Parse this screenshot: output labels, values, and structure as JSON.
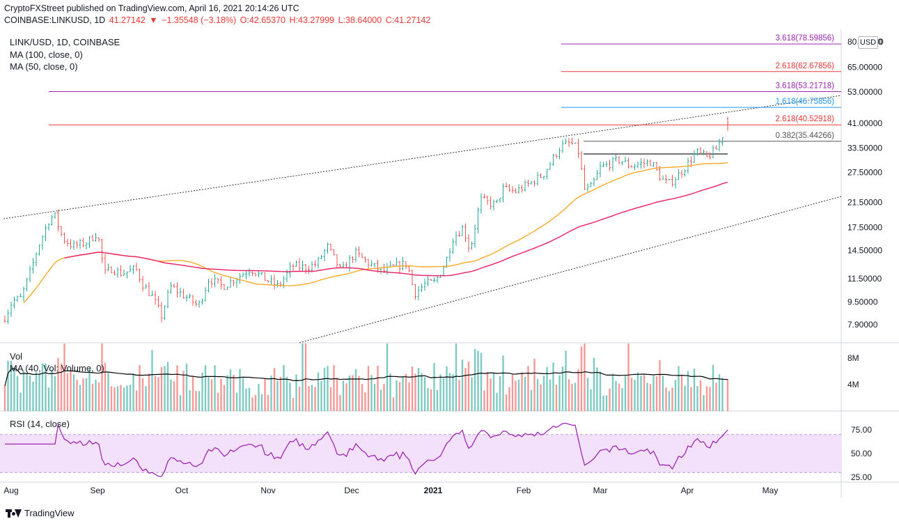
{
  "header": {
    "line1": "CryptoFXStreet published on TradingView.com, April 16, 2021 20:14:26 UTC",
    "symbol": "COINBASE:LINKUSD, 1D",
    "last": "41.27142",
    "change": "−1.35548 (−3.18%)",
    "open": "O:42.65370",
    "high": "H:43.27999",
    "low": "L:38.64000",
    "close": "C:41.27142"
  },
  "legend": {
    "title": "LINK/USD, 1D, COINBASE",
    "ma100": "MA (100, close, 0)",
    "ma50": "MA (50, close, 0)"
  },
  "currency": "USD",
  "price_axis": [
    "80.00000",
    "65.00000",
    "53.00000",
    "41.00000",
    "33.50000",
    "27.50000",
    "21.50000",
    "17.50000",
    "14.50000",
    "11.50000",
    "9.50000",
    "7.90000"
  ],
  "vol_axis": [
    "8M",
    "4M"
  ],
  "rsi_axis": [
    "75.00",
    "50.00",
    "25.00"
  ],
  "time_axis": [
    "Aug",
    "Sep",
    "Oct",
    "Nov",
    "Dec",
    "2021",
    "Feb",
    "Mar",
    "Apr",
    "May"
  ],
  "fib_labels": [
    {
      "text": "3.618(78.59856)",
      "color": "#9c27b0"
    },
    {
      "text": "2.618(62.67856)",
      "color": "#e53935"
    },
    {
      "text": "3.618(53.21718)",
      "color": "#9c27b0"
    },
    {
      "text": "1.618(46.75856)",
      "color": "#2196f3"
    },
    {
      "text": "2.618(40.52918)",
      "color": "#e53935"
    },
    {
      "text": "0.382(35.44266)",
      "color": "#555555"
    }
  ],
  "vol_legend": {
    "title": "Vol",
    "ma": "MA (40, Vol: Volume, 0)"
  },
  "rsi_legend": "RSI (14, close)",
  "footer": "TradingView",
  "chart_data": {
    "type": "candlestick",
    "symbol": "LINK/USD",
    "interval": "1D",
    "exchange": "COINBASE",
    "ohlc_last": {
      "open": 42.6537,
      "high": 43.27999,
      "low": 38.64,
      "close": 41.27142
    },
    "fib_levels": [
      78.59856,
      62.67856,
      53.21718,
      46.75856,
      40.52918,
      35.44266
    ],
    "approx_monthly_closes": [
      {
        "x": "2020-08",
        "y": 15.0
      },
      {
        "x": "2020-09",
        "y": 11.0
      },
      {
        "x": "2020-10",
        "y": 11.5
      },
      {
        "x": "2020-11",
        "y": 13.5
      },
      {
        "x": "2020-12",
        "y": 11.8
      },
      {
        "x": "2021-01",
        "y": 24.0
      },
      {
        "x": "2021-02",
        "y": 29.0
      },
      {
        "x": "2021-03",
        "y": 28.0
      },
      {
        "x": "2021-04-16",
        "y": 41.27
      }
    ],
    "series": [
      {
        "name": "MA (100, close, 0)",
        "color": "#e91e63"
      },
      {
        "name": "MA (50, close, 0)",
        "color": "#f9a825"
      }
    ]
  },
  "colors": {
    "up": "#26a69a",
    "down": "#ef5350",
    "rsi": "#9c27b0",
    "rsi_band": "#f3e0fa"
  }
}
